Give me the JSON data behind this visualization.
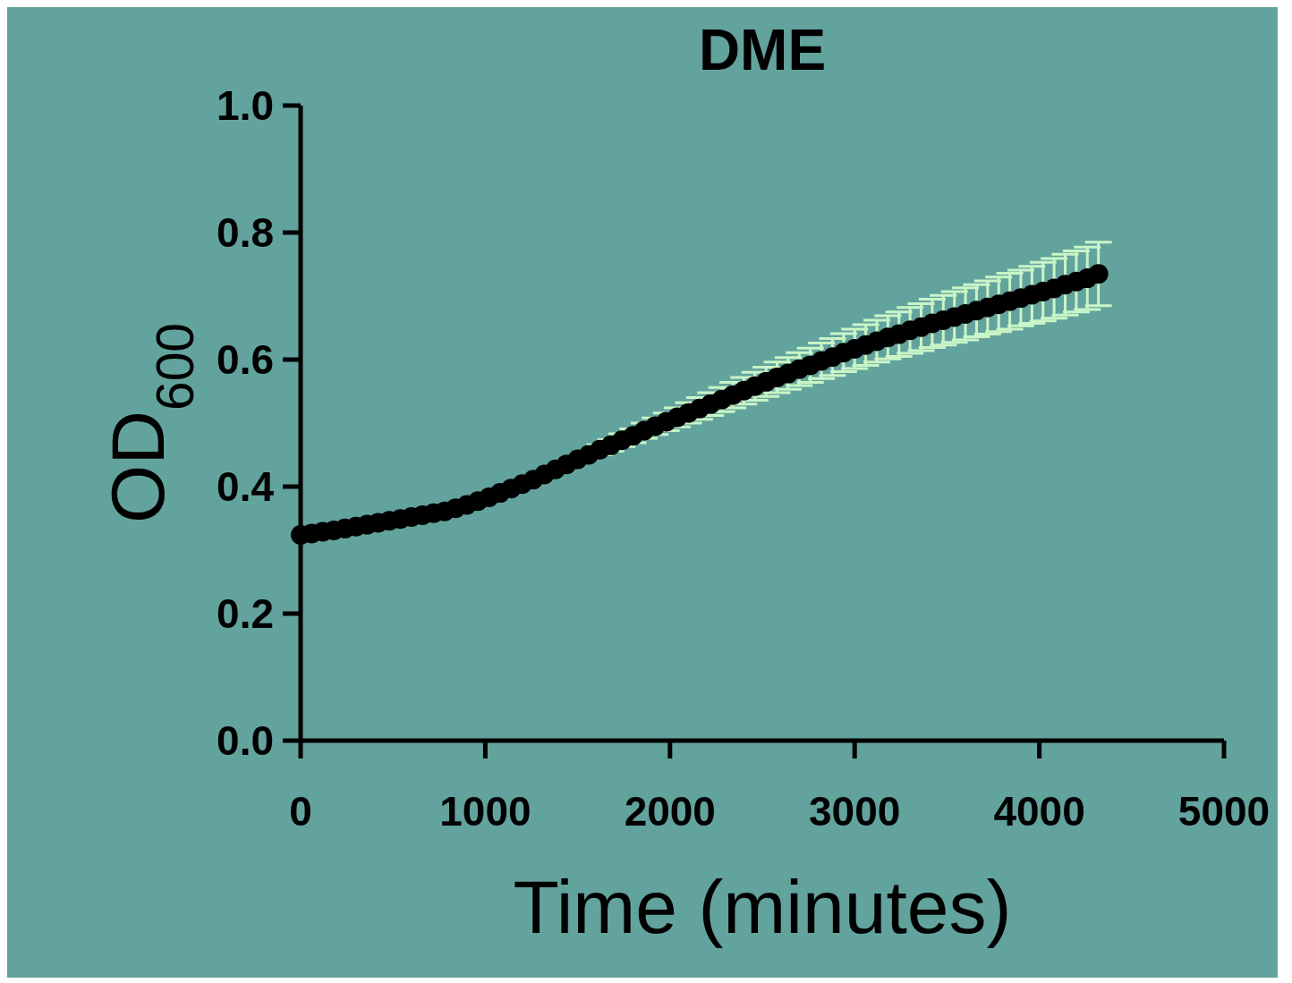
{
  "chart_data": {
    "type": "scatter",
    "title": "DME",
    "xlabel": "Time (minutes)",
    "ylabel": "OD$_{600}$",
    "xlim": [
      0,
      5000
    ],
    "xticks": [
      0,
      1000,
      2000,
      3000,
      4000,
      5000
    ],
    "ylim": [
      0,
      1
    ],
    "yticks": [
      {
        "value": 0,
        "label": "0.0"
      },
      {
        "value": 0.2,
        "label": "0.2"
      },
      {
        "value": 0.4,
        "label": "0.4"
      },
      {
        "value": 0.6,
        "label": "0.6"
      },
      {
        "value": 0.8,
        "label": "0.8"
      },
      {
        "value": 1,
        "label": "1.0"
      }
    ],
    "marker": "circle",
    "grid": false,
    "x": [
      0,
      60,
      120,
      180,
      240,
      300,
      360,
      420,
      480,
      540,
      600,
      660,
      720,
      780,
      840,
      900,
      960,
      1020,
      1080,
      1140,
      1200,
      1260,
      1320,
      1380,
      1440,
      1500,
      1560,
      1620,
      1680,
      1740,
      1800,
      1860,
      1920,
      1980,
      2040,
      2100,
      2160,
      2220,
      2280,
      2340,
      2400,
      2460,
      2520,
      2580,
      2640,
      2700,
      2760,
      2820,
      2880,
      2940,
      3000,
      3060,
      3120,
      3180,
      3240,
      3300,
      3360,
      3420,
      3480,
      3540,
      3600,
      3660,
      3720,
      3780,
      3840,
      3900,
      3960,
      4020,
      4080,
      4140,
      4200,
      4260,
      4320
    ],
    "series": [
      {
        "color": "#000000",
        "values": [
          0.324,
          0.326,
          0.329,
          0.331,
          0.334,
          0.337,
          0.34,
          0.343,
          0.346,
          0.349,
          0.352,
          0.355,
          0.358,
          0.361,
          0.366,
          0.371,
          0.377,
          0.383,
          0.39,
          0.397,
          0.404,
          0.411,
          0.419,
          0.427,
          0.435,
          0.443,
          0.45,
          0.458,
          0.465,
          0.473,
          0.48,
          0.488,
          0.495,
          0.502,
          0.509,
          0.516,
          0.523,
          0.53,
          0.537,
          0.544,
          0.551,
          0.558,
          0.565,
          0.572,
          0.578,
          0.585,
          0.591,
          0.598,
          0.604,
          0.611,
          0.617,
          0.623,
          0.629,
          0.635,
          0.64,
          0.646,
          0.651,
          0.657,
          0.662,
          0.667,
          0.672,
          0.677,
          0.682,
          0.687,
          0.692,
          0.697,
          0.702,
          0.707,
          0.712,
          0.718,
          0.723,
          0.728,
          0.735
        ],
        "errors": [
          null,
          null,
          null,
          null,
          null,
          null,
          null,
          null,
          null,
          null,
          null,
          null,
          null,
          null,
          null,
          null,
          null,
          null,
          null,
          null,
          null,
          null,
          null,
          null,
          null,
          null,
          null,
          0.008,
          0.009,
          0.01,
          0.011,
          0.012,
          0.013,
          0.014,
          0.015,
          0.016,
          0.017,
          0.018,
          0.019,
          0.02,
          0.021,
          0.022,
          0.023,
          0.024,
          0.025,
          0.026,
          0.027,
          0.028,
          0.029,
          0.03,
          0.031,
          0.032,
          0.033,
          0.034,
          0.035,
          0.036,
          0.037,
          0.038,
          0.039,
          0.04,
          0.041,
          0.041,
          0.042,
          0.043,
          0.044,
          0.044,
          0.045,
          0.046,
          0.047,
          0.048,
          0.048,
          0.049,
          0.05
        ]
      }
    ]
  }
}
